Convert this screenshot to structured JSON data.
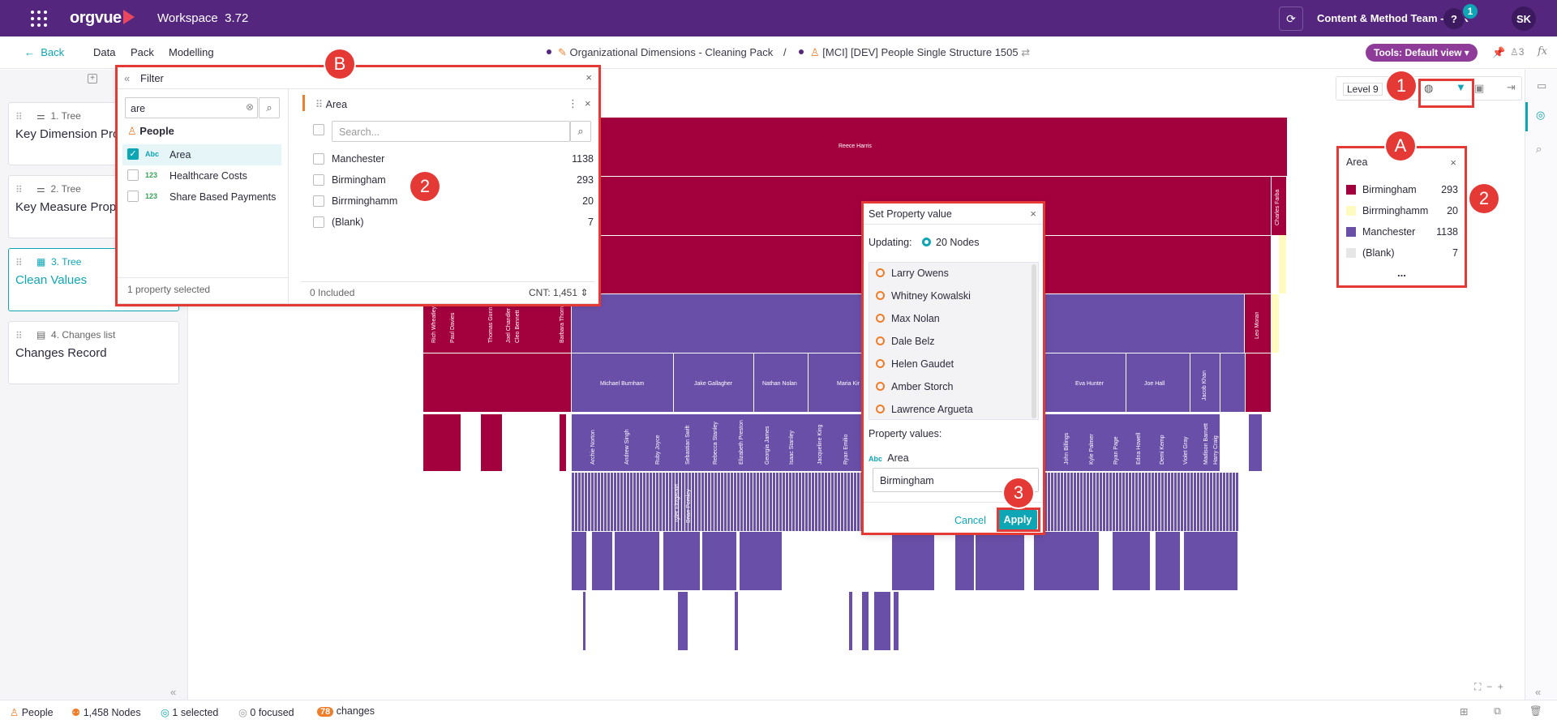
{
  "header": {
    "logo": "orgvue",
    "workspace": "Workspace",
    "version": "3.72",
    "team": "Content & Method Team - CTR",
    "help": "?",
    "notifications": "1",
    "user_initials": "SK"
  },
  "subbar": {
    "back": "Back",
    "menu": [
      "Data",
      "Pack",
      "Modelling"
    ],
    "crumb1": "Organizational Dimensions - Cleaning Pack",
    "sep": "/",
    "crumb2": "[MCI] [DEV] People Single Structure 1505",
    "tools": "Tools: Default view",
    "people_count": "3",
    "fx": "fx"
  },
  "left_panel": {
    "cards": [
      {
        "type": "1. Tree",
        "title": "Key Dimension Properties"
      },
      {
        "type": "2. Tree",
        "title": "Key Measure Properties"
      },
      {
        "type": "3. Tree",
        "title": "Clean Values"
      },
      {
        "type": "4. Changes list",
        "title": "Changes Record"
      }
    ]
  },
  "filter": {
    "title": "Filter",
    "search_value": "are",
    "group": "People",
    "properties": [
      {
        "type": "Abc",
        "name": "Area",
        "checked": true
      },
      {
        "type": "123",
        "name": "Healthcare Costs",
        "checked": false
      },
      {
        "type": "123",
        "name": "Share Based Payments",
        "checked": false
      }
    ],
    "selected_text": "1 property selected",
    "area_title": "Area",
    "search_placeholder": "Search...",
    "values": [
      {
        "label": "Manchester",
        "count": "1138"
      },
      {
        "label": "Birmingham",
        "count": "293"
      },
      {
        "label": "Birrminghamm",
        "count": "20"
      },
      {
        "label": "(Blank)",
        "count": "7"
      }
    ],
    "included": "0 Included",
    "cnt": "CNT: 1,451"
  },
  "canvas": {
    "level": "Level 9",
    "names": {
      "root": "Reece Harris",
      "charles": "Charles Farba",
      "leo": "Leo Moran",
      "michael": "Michael Burnham",
      "jake": "Jake Gallagher",
      "nathan": "Nathan Nolan",
      "maria": "Maria Kir",
      "eva": "Eva Hunter",
      "joe": "Joe Hall",
      "jacob": "Jacob Khan",
      "rich": "Rich Wheatley",
      "paul": "Paul Davies",
      "thomas": "Thomas Gunn",
      "joel": "Joel Chandler",
      "cleo": "Cleo Bennett",
      "barbara": "Barbara Thorn",
      "archie": "Archie Norton",
      "andrew": "Andrew Singh",
      "ruby": "Ruby Joyce",
      "sebastian": "Sebastian Swift",
      "rebecca": "Rebecca Stanley",
      "elizabeth": "Elizabeth Preston",
      "georgia": "Georgia James",
      "isaac": "Isaac Stanley",
      "jacqueline": "Jacqueline King",
      "ryan_e": "Ryan Emilio",
      "john": "John Billings",
      "kyle": "Kyle Palmer",
      "ryan_p": "Ryan Page",
      "edna": "Edna Howell",
      "demi": "Demi Kemp",
      "violet": "Violet Gray",
      "madison": "Madison Barnett",
      "harry": "Harry Craig",
      "tyler": "Tyler Fitzgerald",
      "brian": "Brian Pemley"
    }
  },
  "set_property": {
    "title": "Set Property value",
    "updating_label": "Updating:",
    "nodes": "20 Nodes",
    "people": [
      "Larry Owens",
      "Whitney Kowalski",
      "Max Nolan",
      "Dale Belz",
      "Helen Gaudet",
      "Amber Storch",
      "Lawrence Argueta"
    ],
    "values_label": "Property values:",
    "prop_type": "Abc",
    "prop_name": "Area",
    "value": "Birmingham",
    "cancel": "Cancel",
    "apply": "Apply"
  },
  "legend": {
    "title": "Area",
    "items": [
      {
        "label": "Birmingham",
        "count": "293",
        "color": "#a3003e"
      },
      {
        "label": "Birrminghamm",
        "count": "20",
        "color": "#fffac0"
      },
      {
        "label": "Manchester",
        "count": "1138",
        "color": "#6a4fa8"
      },
      {
        "label": "(Blank)",
        "count": "7",
        "color": "#e6e6e6"
      }
    ],
    "more": "..."
  },
  "annotations": {
    "b": "B",
    "a": "A",
    "one": "1",
    "two_left": "2",
    "two_right": "2",
    "three": "3"
  },
  "footer": {
    "entity": "People",
    "nodes": "1,458 Nodes",
    "selected": "1 selected",
    "focused": "0 focused",
    "changes_count": "78",
    "changes": "changes"
  },
  "colors": {
    "brand": "#54267e",
    "accent": "#0ea6b5",
    "birmingham": "#a3003e",
    "manchester": "#6a4fa8",
    "annotation": "#e53935"
  }
}
